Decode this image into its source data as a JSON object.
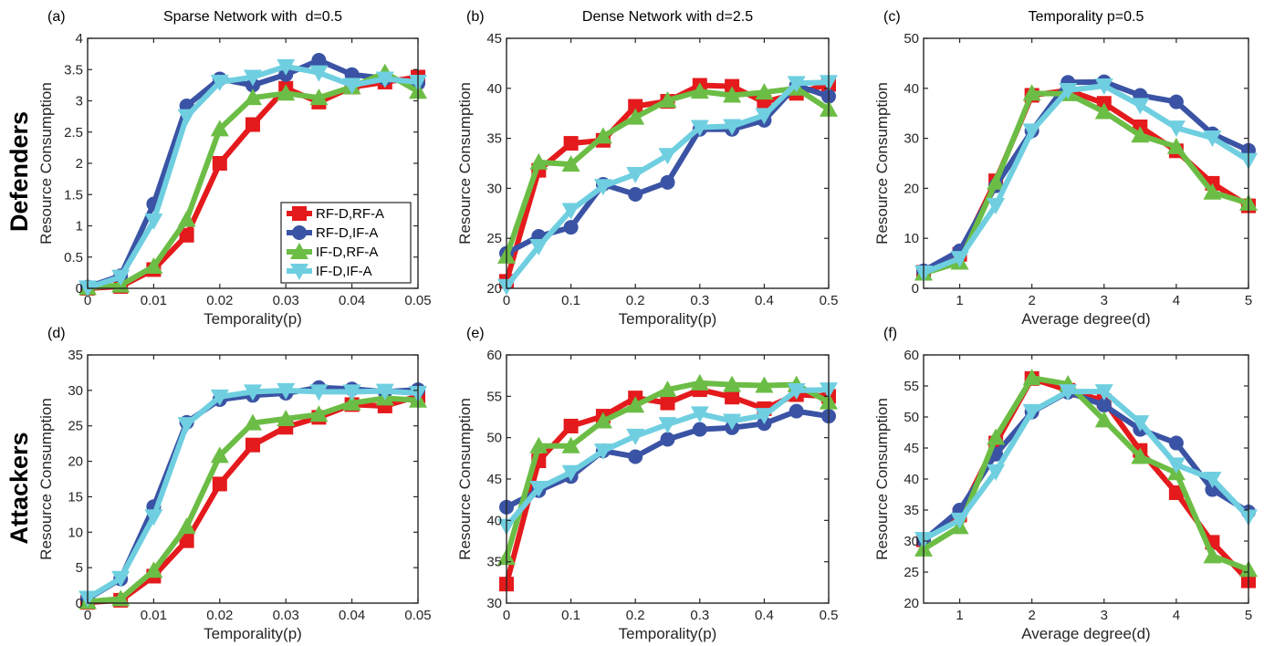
{
  "row_labels": [
    "Defenders",
    "Attackers"
  ],
  "colors": {
    "RF-D,RF-A": "#e41a1c",
    "RF-D,IF-A": "#3a53a4",
    "IF-D,RF-A": "#6cbd45",
    "IF-D,IF-A": "#6fcfe0"
  },
  "legend": {
    "placement": "inside-lower-right of panel (a)",
    "entries": [
      "RF-D,RF-A",
      "RF-D,IF-A",
      "IF-D,RF-A",
      "IF-D,IF-A"
    ]
  },
  "chart_data": [
    {
      "id": "a",
      "panel_label": "(a)",
      "title": "Sparse Network with  d=0.5",
      "type": "line",
      "xlabel": "Temporality(p)",
      "ylabel": "Resource Consumption",
      "xlim": [
        0,
        0.05
      ],
      "ylim": [
        0,
        4
      ],
      "grid": false,
      "xticks": [
        0,
        0.01,
        0.02,
        0.03,
        0.04,
        0.05
      ],
      "xticklabels": [
        "0",
        "0.01",
        "0.02",
        "0.03",
        "0.04",
        "0.05"
      ],
      "yticks": [
        0,
        0.5,
        1,
        1.5,
        2,
        2.5,
        3,
        3.5,
        4
      ],
      "yticklabels": [
        "0",
        "0.5",
        "1",
        "1.5",
        "2",
        "2.5",
        "3",
        "3.5",
        "4"
      ],
      "x": [
        0,
        0.005,
        0.01,
        0.015,
        0.02,
        0.025,
        0.03,
        0.035,
        0.04,
        0.045,
        0.05
      ],
      "series": [
        {
          "name": "RF-D,RF-A",
          "values": [
            0,
            0.03,
            0.3,
            0.85,
            2.0,
            2.62,
            3.2,
            2.98,
            3.22,
            3.3,
            3.38
          ]
        },
        {
          "name": "RF-D,IF-A",
          "values": [
            0.02,
            0.2,
            1.35,
            2.92,
            3.35,
            3.25,
            3.42,
            3.65,
            3.42,
            3.36,
            3.28
          ]
        },
        {
          "name": "IF-D,RF-A",
          "values": [
            0.01,
            0.05,
            0.35,
            1.1,
            2.55,
            3.05,
            3.12,
            3.05,
            3.22,
            3.45,
            3.15
          ]
        },
        {
          "name": "IF-D,IF-A",
          "values": [
            0.01,
            0.18,
            1.08,
            2.75,
            3.3,
            3.38,
            3.55,
            3.45,
            3.25,
            3.35,
            3.3
          ]
        }
      ]
    },
    {
      "id": "b",
      "panel_label": "(b)",
      "title": "Dense Network with d=2.5",
      "type": "line",
      "xlabel": "Temporality(p)",
      "ylabel": "Resource Consumption",
      "xlim": [
        0,
        0.5
      ],
      "ylim": [
        20,
        45
      ],
      "grid": false,
      "xticks": [
        0,
        0.1,
        0.2,
        0.3,
        0.4,
        0.5
      ],
      "xticklabels": [
        "0",
        "0.1",
        "0.2",
        "0.3",
        "0.4",
        "0.5"
      ],
      "yticks": [
        20,
        25,
        30,
        35,
        40,
        45
      ],
      "yticklabels": [
        "20",
        "25",
        "30",
        "35",
        "40",
        "45"
      ],
      "x": [
        0,
        0.05,
        0.1,
        0.15,
        0.2,
        0.25,
        0.3,
        0.35,
        0.4,
        0.45,
        0.5
      ],
      "series": [
        {
          "name": "RF-D,RF-A",
          "values": [
            20.7,
            31.8,
            34.5,
            34.8,
            38.2,
            38.7,
            40.3,
            40.2,
            38.6,
            39.5,
            40.4
          ]
        },
        {
          "name": "RF-D,IF-A",
          "values": [
            23.5,
            25.2,
            26.1,
            30.4,
            29.4,
            30.6,
            35.9,
            35.9,
            36.8,
            40.3,
            39.2
          ]
        },
        {
          "name": "IF-D,RF-A",
          "values": [
            23.2,
            32.6,
            32.4,
            35.2,
            37.1,
            38.8,
            39.7,
            39.3,
            39.6,
            40.0,
            37.9
          ]
        },
        {
          "name": "IF-D,IF-A",
          "values": [
            20.2,
            24.2,
            27.8,
            30.2,
            31.4,
            33.3,
            36.1,
            36.2,
            37.3,
            40.5,
            40.6
          ]
        }
      ]
    },
    {
      "id": "c",
      "panel_label": "(c)",
      "title": "Temporality p=0.5",
      "type": "line",
      "xlabel": "Average degree(d)",
      "ylabel": "Resource Consumption",
      "xlim": [
        0.5,
        5
      ],
      "ylim": [
        0,
        50
      ],
      "grid": false,
      "xticks": [
        1,
        2,
        3,
        4,
        5
      ],
      "xticklabels": [
        "1",
        "2",
        "3",
        "4",
        "5"
      ],
      "yticks": [
        0,
        10,
        20,
        30,
        40,
        50
      ],
      "yticklabels": [
        "0",
        "10",
        "20",
        "30",
        "40",
        "50"
      ],
      "x": [
        0.5,
        1,
        1.5,
        2,
        2.5,
        3,
        3.5,
        4,
        4.5,
        5
      ],
      "series": [
        {
          "name": "RF-D,RF-A",
          "values": [
            3.2,
            6.8,
            21.5,
            38.6,
            39.6,
            37.0,
            32.3,
            27.5,
            21.0,
            16.5
          ]
        },
        {
          "name": "RF-D,IF-A",
          "values": [
            3.5,
            7.5,
            20.5,
            31.5,
            41.2,
            41.3,
            38.6,
            37.3,
            30.9,
            27.6
          ]
        },
        {
          "name": "IF-D,RF-A",
          "values": [
            3.0,
            5.2,
            21.2,
            39.0,
            38.9,
            35.3,
            30.6,
            28.3,
            19.2,
            17.0
          ]
        },
        {
          "name": "IF-D,IF-A",
          "values": [
            3.1,
            6.0,
            16.6,
            31.5,
            39.6,
            40.5,
            36.6,
            32.1,
            30.1,
            25.6
          ]
        }
      ]
    },
    {
      "id": "d",
      "panel_label": "(d)",
      "title": "",
      "type": "line",
      "xlabel": "Temporality(p)",
      "ylabel": "Resource Consumption",
      "xlim": [
        0,
        0.05
      ],
      "ylim": [
        0,
        35
      ],
      "grid": false,
      "xticks": [
        0,
        0.01,
        0.02,
        0.03,
        0.04,
        0.05
      ],
      "xticklabels": [
        "0",
        "0.01",
        "0.02",
        "0.03",
        "0.04",
        "0.05"
      ],
      "yticks": [
        0,
        5,
        10,
        15,
        20,
        25,
        30,
        35
      ],
      "yticklabels": [
        "0",
        "5",
        "10",
        "15",
        "20",
        "25",
        "30",
        "35"
      ],
      "x": [
        0,
        0.005,
        0.01,
        0.015,
        0.02,
        0.025,
        0.03,
        0.035,
        0.04,
        0.045,
        0.05
      ],
      "series": [
        {
          "name": "RF-D,RF-A",
          "values": [
            0.1,
            0.4,
            3.8,
            8.8,
            16.8,
            22.3,
            24.8,
            26.2,
            28.0,
            27.8,
            29.2
          ]
        },
        {
          "name": "RF-D,IF-A",
          "values": [
            0.6,
            3.4,
            13.6,
            25.5,
            28.7,
            29.3,
            29.6,
            30.4,
            30.2,
            29.8,
            30.1
          ]
        },
        {
          "name": "IF-D,RF-A",
          "values": [
            0.2,
            0.6,
            4.6,
            10.8,
            20.8,
            25.4,
            26.0,
            26.6,
            28.2,
            28.9,
            28.6
          ]
        },
        {
          "name": "IF-D,IF-A",
          "values": [
            0.7,
            3.5,
            12.2,
            25.2,
            29.1,
            29.8,
            30.0,
            29.8,
            29.8,
            29.9,
            29.6
          ]
        }
      ]
    },
    {
      "id": "e",
      "panel_label": "(e)",
      "title": "",
      "type": "line",
      "xlabel": "Temporality(p)",
      "ylabel": "Resource Consumption",
      "xlim": [
        0,
        0.5
      ],
      "ylim": [
        30,
        60
      ],
      "grid": false,
      "xticks": [
        0,
        0.1,
        0.2,
        0.3,
        0.4,
        0.5
      ],
      "xticklabels": [
        "0",
        "0.1",
        "0.2",
        "0.3",
        "0.4",
        "0.5"
      ],
      "yticks": [
        30,
        35,
        40,
        45,
        50,
        55,
        60
      ],
      "yticklabels": [
        "30",
        "35",
        "40",
        "45",
        "50",
        "55",
        "60"
      ],
      "x": [
        0,
        0.05,
        0.1,
        0.15,
        0.2,
        0.25,
        0.3,
        0.35,
        0.4,
        0.45,
        0.5
      ],
      "series": [
        {
          "name": "RF-D,RF-A",
          "values": [
            32.3,
            47.2,
            51.4,
            52.6,
            54.8,
            54.2,
            55.8,
            54.9,
            53.5,
            55.2,
            55.0
          ]
        },
        {
          "name": "RF-D,IF-A",
          "values": [
            41.6,
            43.6,
            45.3,
            48.4,
            47.7,
            49.8,
            51.0,
            51.2,
            51.7,
            53.2,
            52.6
          ]
        },
        {
          "name": "IF-D,RF-A",
          "values": [
            35.5,
            49.0,
            49.0,
            52.0,
            53.9,
            55.8,
            56.6,
            56.4,
            56.3,
            56.4,
            54.3
          ]
        },
        {
          "name": "IF-D,IF-A",
          "values": [
            39.3,
            43.9,
            45.8,
            48.4,
            50.2,
            51.6,
            52.9,
            52.0,
            52.7,
            55.7,
            55.8
          ]
        }
      ]
    },
    {
      "id": "f",
      "panel_label": "(f)",
      "title": "",
      "type": "line",
      "xlabel": "Average degree(d)",
      "ylabel": "Resource Consumption",
      "xlim": [
        0.5,
        5
      ],
      "ylim": [
        20,
        60
      ],
      "grid": false,
      "xticks": [
        1,
        2,
        3,
        4,
        5
      ],
      "xticklabels": [
        "1",
        "2",
        "3",
        "4",
        "5"
      ],
      "yticks": [
        20,
        25,
        30,
        35,
        40,
        45,
        50,
        55,
        60
      ],
      "yticklabels": [
        "20",
        "25",
        "30",
        "35",
        "40",
        "45",
        "50",
        "55",
        "60"
      ],
      "x": [
        0.5,
        1,
        1.5,
        2,
        2.5,
        3,
        3.5,
        4,
        4.5,
        5
      ],
      "series": [
        {
          "name": "RF-D,RF-A",
          "values": [
            30.2,
            34.2,
            45.8,
            56.2,
            54.3,
            52.6,
            44.6,
            37.8,
            29.8,
            23.6
          ]
        },
        {
          "name": "RF-D,IF-A",
          "values": [
            30.1,
            35.0,
            44.0,
            50.8,
            54.0,
            51.9,
            48.0,
            45.8,
            38.3,
            34.7
          ]
        },
        {
          "name": "IF-D,RF-A",
          "values": [
            28.7,
            32.3,
            46.7,
            56.3,
            55.3,
            49.5,
            43.6,
            41.0,
            27.6,
            25.4
          ]
        },
        {
          "name": "IF-D,IF-A",
          "values": [
            30.3,
            33.4,
            41.2,
            50.9,
            54.1,
            54.1,
            49.1,
            42.3,
            40.0,
            33.9
          ]
        }
      ]
    }
  ]
}
